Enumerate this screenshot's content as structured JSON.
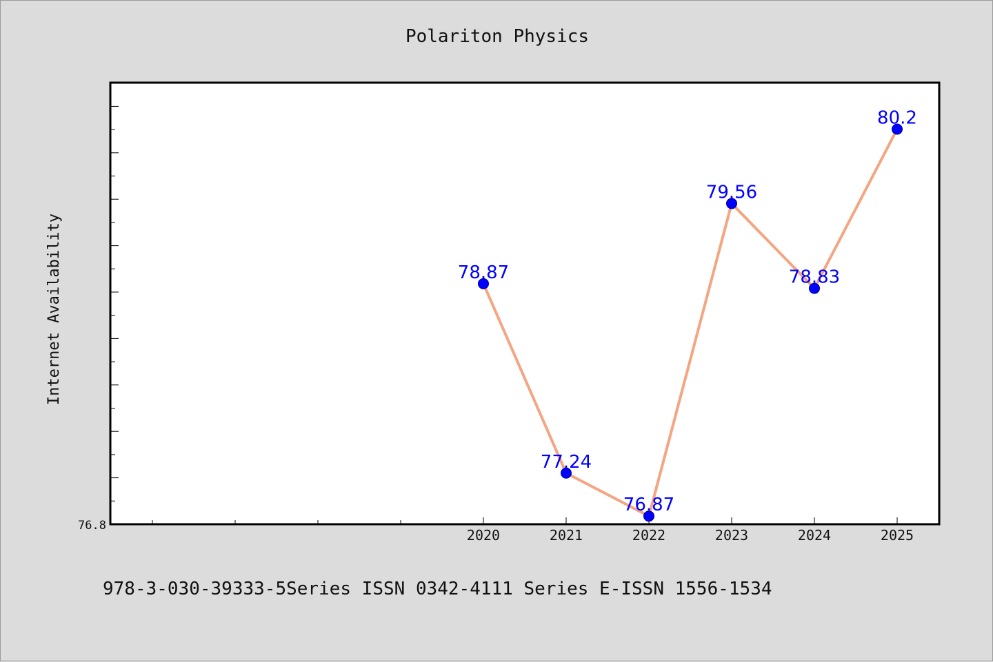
{
  "chart_data": {
    "type": "line",
    "title": "Polariton Physics",
    "xlabel": "",
    "ylabel": "Internet Availability",
    "categories": [
      "2020",
      "2021",
      "2022",
      "2023",
      "2024",
      "2025"
    ],
    "values": [
      78.87,
      77.24,
      76.87,
      79.56,
      78.83,
      80.2
    ],
    "data_labels": [
      "78.87",
      "77.24",
      "76.87",
      "79.56",
      "78.83",
      "80.2"
    ],
    "y_tick_label": "76.8",
    "ylim": [
      76.8,
      80.6
    ],
    "grid": false,
    "line_color": "#f4a582",
    "marker_color": "#0000ff",
    "label_color": "#0000ff"
  },
  "footer": {
    "text": "978-3-030-39333-5Series ISSN 0342-4111 Series E-ISSN 1556-1534"
  }
}
